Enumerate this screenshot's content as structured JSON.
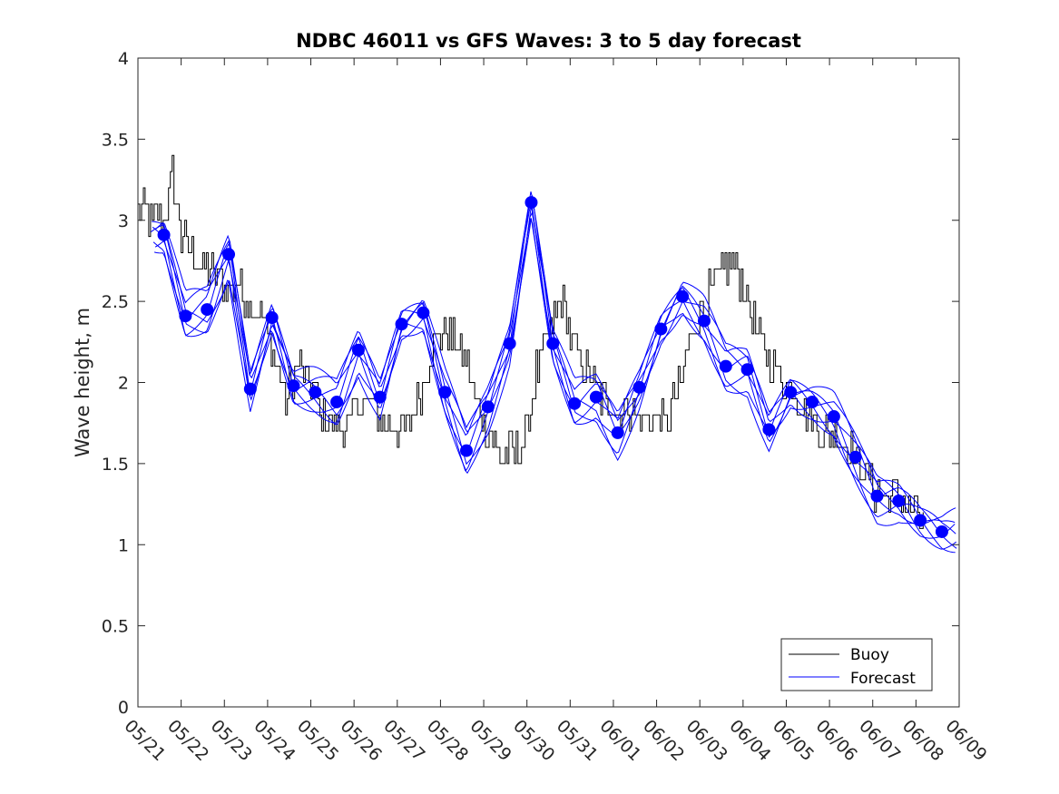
{
  "chart_data": {
    "type": "line",
    "title": "NDBC 46011 vs GFS Waves: 3 to 5 day forecast",
    "xlabel": "",
    "ylabel": "Wave height, m",
    "ylim": [
      0,
      4
    ],
    "yticks": [
      0,
      0.5,
      1,
      1.5,
      2,
      2.5,
      3,
      3.5,
      4
    ],
    "ytick_labels": [
      "0",
      "0.5",
      "1",
      "1.5",
      "2",
      "2.5",
      "3",
      "3.5",
      "4"
    ],
    "x_axis": "date (day index from 05/21)",
    "xlim": [
      0,
      19
    ],
    "xtick_labels": [
      "05/21",
      "05/22",
      "05/23",
      "05/24",
      "05/25",
      "05/26",
      "05/27",
      "05/28",
      "05/29",
      "05/30",
      "05/31",
      "06/01",
      "06/02",
      "06/03",
      "06/04",
      "06/05",
      "06/06",
      "06/07",
      "06/08",
      "06/09"
    ],
    "legend": {
      "position": "bottom-right",
      "entries": [
        {
          "label": "Buoy",
          "color": "#000000"
        },
        {
          "label": "Forecast",
          "color": "#0000ff"
        }
      ]
    },
    "colors": {
      "buoy": "#000000",
      "forecast": "#0000ff",
      "markers": "#0000ff"
    },
    "grid": false,
    "series": [
      {
        "name": "Buoy",
        "style": "noisy-line",
        "anchors_x": [
          0,
          0.3,
          0.6,
          0.8,
          1.0,
          1.3,
          1.6,
          2.0,
          2.3,
          2.6,
          2.9,
          3.1,
          3.4,
          3.7,
          4.0,
          4.2,
          4.5,
          4.8,
          5.1,
          5.4,
          5.7,
          6.0,
          6.3,
          6.6,
          6.9,
          7.2,
          7.5,
          7.8,
          8.1,
          8.4,
          8.7,
          9.0,
          9.2,
          9.5,
          9.8,
          10.1,
          10.4,
          10.7,
          11.0,
          11.3,
          11.6,
          11.9,
          12.2,
          12.5,
          12.8,
          13.1,
          13.4,
          13.7,
          14.0,
          14.3,
          14.6,
          14.9,
          15.2,
          15.5,
          15.8,
          16.1,
          16.4,
          16.7,
          17.0,
          17.3,
          17.6,
          17.9,
          18.2
        ],
        "anchors_y": [
          3.1,
          3.0,
          3.0,
          3.3,
          2.9,
          2.8,
          2.7,
          2.6,
          2.6,
          2.5,
          2.4,
          2.2,
          1.9,
          2.1,
          2.0,
          1.8,
          1.75,
          1.7,
          1.9,
          1.85,
          1.75,
          1.7,
          1.75,
          2.0,
          2.3,
          2.3,
          2.2,
          1.9,
          1.7,
          1.55,
          1.55,
          1.7,
          2.05,
          2.3,
          2.5,
          2.2,
          2.05,
          1.9,
          1.85,
          1.85,
          1.75,
          1.8,
          1.75,
          1.95,
          2.3,
          2.5,
          2.65,
          2.75,
          2.6,
          2.3,
          2.15,
          2.0,
          1.95,
          1.8,
          1.7,
          1.7,
          1.6,
          1.5,
          1.35,
          1.3,
          1.3,
          1.2,
          1.15
        ],
        "noise_amplitude": 0.12
      },
      {
        "name": "Forecast",
        "style": "ensemble-lines",
        "members": 7,
        "x": [
          0.6,
          1.1,
          1.6,
          2.1,
          2.6,
          3.1,
          3.6,
          4.1,
          4.6,
          5.1,
          5.6,
          6.1,
          6.6,
          7.1,
          7.6,
          8.1,
          8.6,
          9.1,
          9.6,
          10.1,
          10.6,
          11.1,
          11.6,
          12.1,
          12.6,
          13.1,
          13.6,
          14.1,
          14.6,
          15.1,
          15.6,
          16.1,
          16.6,
          17.1,
          17.6,
          18.1,
          18.6
        ],
        "values": [
          2.91,
          2.41,
          2.45,
          2.79,
          1.96,
          2.4,
          1.98,
          1.94,
          1.88,
          2.2,
          1.91,
          2.36,
          2.43,
          1.94,
          1.58,
          1.85,
          2.24,
          3.11,
          2.24,
          1.87,
          1.91,
          1.69,
          1.97,
          2.33,
          2.53,
          2.38,
          2.1,
          2.08,
          1.71,
          1.94,
          1.88,
          1.79,
          1.54,
          1.3,
          1.27,
          1.15,
          1.08
        ]
      }
    ]
  }
}
